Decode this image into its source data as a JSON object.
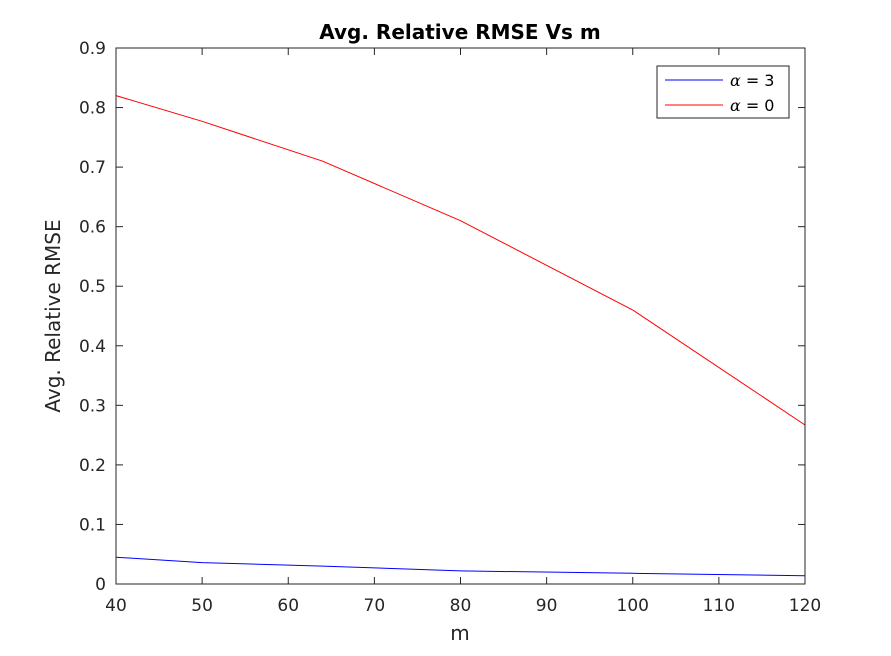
{
  "chart_data": {
    "type": "line",
    "title": "Avg. Relative RMSE Vs m",
    "xlabel": "m",
    "ylabel": "Avg. Relative RMSE",
    "xlim": [
      40,
      120
    ],
    "ylim": [
      0,
      0.9
    ],
    "xticks": [
      40,
      50,
      60,
      70,
      80,
      90,
      100,
      110,
      120
    ],
    "yticks": [
      0,
      0.1,
      0.2,
      0.3,
      0.4,
      0.5,
      0.6,
      0.7,
      0.8,
      0.9
    ],
    "xtick_labels": [
      "40",
      "50",
      "60",
      "70",
      "80",
      "90",
      "100",
      "110",
      "120"
    ],
    "ytick_labels": [
      "0",
      "0.1",
      "0.2",
      "0.3",
      "0.4",
      "0.5",
      "0.6",
      "0.7",
      "0.8",
      "0.9"
    ],
    "grid": false,
    "legend_position": "top-right",
    "series": [
      {
        "name": "α = 3",
        "legend_symbol": "α",
        "legend_value": "= 3",
        "color": "#0000ff",
        "x": [
          40,
          50,
          64,
          80,
          100,
          120
        ],
        "y": [
          0.045,
          0.036,
          0.03,
          0.022,
          0.018,
          0.014
        ]
      },
      {
        "name": "α = 0",
        "legend_symbol": "α",
        "legend_value": "= 0",
        "color": "#ff0000",
        "x": [
          40,
          50,
          64,
          80,
          100,
          120
        ],
        "y": [
          0.82,
          0.777,
          0.71,
          0.61,
          0.46,
          0.267
        ]
      }
    ]
  }
}
